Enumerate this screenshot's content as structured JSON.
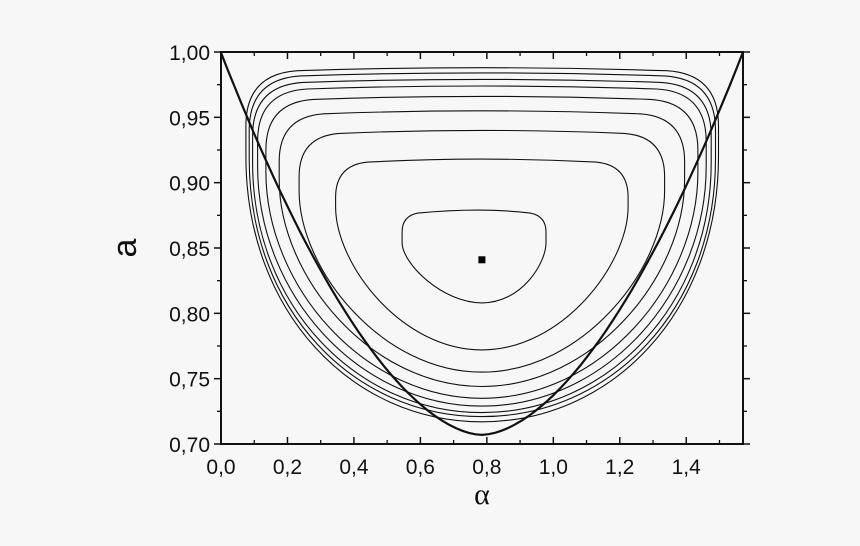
{
  "chart_data": {
    "type": "line",
    "subtype": "contour / phase portrait",
    "title": "",
    "xlabel": "α",
    "ylabel": "a",
    "xlim": [
      0.0,
      1.5708
    ],
    "ylim": [
      0.7,
      1.0
    ],
    "x_ticks": [
      0.0,
      0.2,
      0.4,
      0.6,
      0.8,
      1.0,
      1.2,
      1.4
    ],
    "x_tick_labels": [
      "0,0",
      "0,2",
      "0,4",
      "0,6",
      "0,8",
      "1,0",
      "1,2",
      "1,4"
    ],
    "y_ticks": [
      0.7,
      0.75,
      0.8,
      0.85,
      0.9,
      0.95,
      1.0
    ],
    "y_tick_labels": [
      "0,70",
      "0,75",
      "0,80",
      "0,85",
      "0,90",
      "0,95",
      "1,00"
    ],
    "grid": false,
    "legend": null,
    "fixed_point": {
      "x": 0.785,
      "y": 0.841,
      "marker": "square"
    },
    "boundary": {
      "name": "separatrix (thick outer curve)",
      "top_corners": [
        [
          0.0,
          1.0
        ],
        [
          1.5708,
          1.0
        ]
      ],
      "minimum": [
        0.785,
        0.707
      ]
    },
    "contours": [
      {
        "level": 1,
        "top_y": 0.879,
        "bottom_y": 0.808,
        "left_x": 0.545,
        "right_x": 0.978
      },
      {
        "level": 2,
        "top_y": 0.918,
        "bottom_y": 0.772,
        "left_x": 0.345,
        "right_x": 1.225
      },
      {
        "level": 3,
        "top_y": 0.94,
        "bottom_y": 0.755,
        "left_x": 0.235,
        "right_x": 1.335
      },
      {
        "level": 4,
        "top_y": 0.955,
        "bottom_y": 0.744,
        "left_x": 0.175,
        "right_x": 1.395
      },
      {
        "level": 5,
        "top_y": 0.966,
        "bottom_y": 0.735,
        "left_x": 0.135,
        "right_x": 1.435
      },
      {
        "level": 6,
        "top_y": 0.974,
        "bottom_y": 0.729,
        "left_x": 0.11,
        "right_x": 1.46
      },
      {
        "level": 7,
        "top_y": 0.979,
        "bottom_y": 0.724,
        "left_x": 0.095,
        "right_x": 1.475
      },
      {
        "level": 8,
        "top_y": 0.984,
        "bottom_y": 0.721,
        "left_x": 0.085,
        "right_x": 1.488
      },
      {
        "level": 9,
        "top_y": 0.988,
        "bottom_y": 0.717,
        "left_x": 0.075,
        "right_x": 1.497
      }
    ]
  },
  "colors": {
    "background": "#f7f7f7",
    "plot_background": "#f7f7f7",
    "line": "#111111"
  }
}
